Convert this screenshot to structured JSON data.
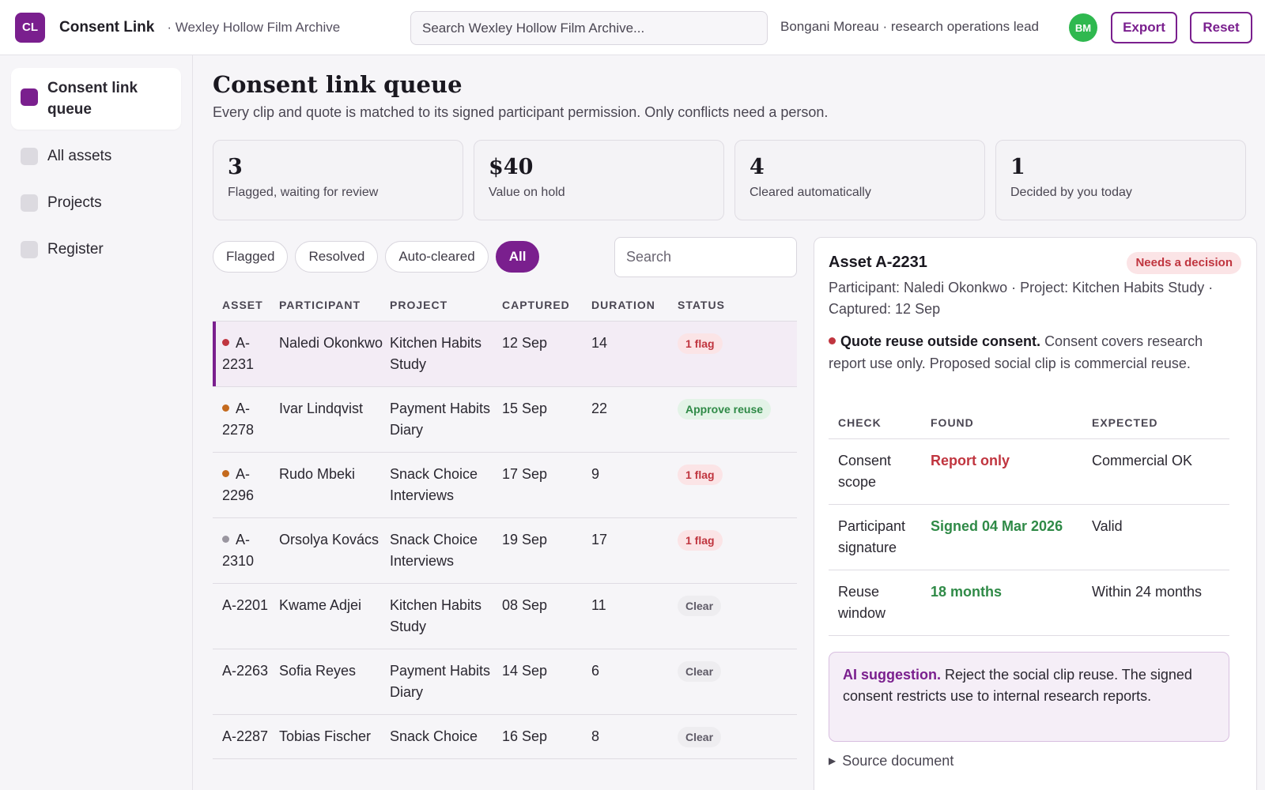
{
  "header": {
    "logo_text": "CL",
    "app_name": "Consent Link",
    "org": "· Wexley Hollow Film Archive",
    "search_placeholder": "Search Wexley Hollow Film Archive...",
    "user": "Bongani Moreau · research operations lead",
    "avatar": "BM",
    "export_label": "Export",
    "reset_label": "Reset"
  },
  "sidebar": {
    "items": [
      {
        "label": "Consent link queue",
        "active": true
      },
      {
        "label": "All assets",
        "active": false
      },
      {
        "label": "Projects",
        "active": false
      },
      {
        "label": "Register",
        "active": false
      }
    ]
  },
  "main": {
    "title": "Consent link queue",
    "subtitle": "Every clip and quote is matched to its signed participant permission. Only conflicts need a person.",
    "stats": [
      {
        "value": "3",
        "label": "Flagged, waiting for review"
      },
      {
        "value": "$40",
        "label": "Value on hold"
      },
      {
        "value": "4",
        "label": "Cleared automatically"
      },
      {
        "value": "1",
        "label": "Decided by you today"
      }
    ],
    "filters": [
      "Flagged",
      "Resolved",
      "Auto-cleared",
      "All"
    ],
    "active_filter": "All",
    "search_placeholder": "Search"
  },
  "table": {
    "columns": [
      "ASSET",
      "PARTICIPANT",
      "PROJECT",
      "CAPTURED",
      "DURATION",
      "STATUS"
    ],
    "rows": [
      {
        "asset": "A-2231",
        "participant": "Naledi Okonkwo",
        "project": "Kitchen Habits Study",
        "captured": "12 Sep",
        "duration": "14",
        "status": "1 flag",
        "status_type": "flag",
        "dot": "#c0353f",
        "selected": true
      },
      {
        "asset": "A-2278",
        "participant": "Ivar Lindqvist",
        "project": "Payment Habits Diary",
        "captured": "15 Sep",
        "duration": "22",
        "status": "Approve reuse",
        "status_type": "approve",
        "dot": "#c46a1e",
        "selected": false
      },
      {
        "asset": "A-2296",
        "participant": "Rudo Mbeki",
        "project": "Snack Choice Interviews",
        "captured": "17 Sep",
        "duration": "9",
        "status": "1 flag",
        "status_type": "flag",
        "dot": "#c46a1e",
        "selected": false
      },
      {
        "asset": "A-2310",
        "participant": "Orsolya Kovács",
        "project": "Snack Choice Interviews",
        "captured": "19 Sep",
        "duration": "17",
        "status": "1 flag",
        "status_type": "flag",
        "dot": "#9a96a0",
        "selected": false
      },
      {
        "asset": "A-2201",
        "participant": "Kwame Adjei",
        "project": "Kitchen Habits Study",
        "captured": "08 Sep",
        "duration": "11",
        "status": "Clear",
        "status_type": "clear",
        "dot": null,
        "selected": false
      },
      {
        "asset": "A-2263",
        "participant": "Sofia Reyes",
        "project": "Payment Habits Diary",
        "captured": "14 Sep",
        "duration": "6",
        "status": "Clear",
        "status_type": "clear",
        "dot": null,
        "selected": false
      },
      {
        "asset": "A-2287",
        "participant": "Tobias Fischer",
        "project": "Snack Choice",
        "captured": "16 Sep",
        "duration": "8",
        "status": "Clear",
        "status_type": "clear",
        "dot": null,
        "selected": false
      }
    ]
  },
  "detail": {
    "title": "Asset A-2231",
    "badge": "Needs a decision",
    "meta": "Participant: Naledi Okonkwo · Project: Kitchen Habits Study · Captured: 12 Sep",
    "issue_title": "Quote reuse outside consent.",
    "issue_text": "Consent covers research report use only. Proposed social clip is commercial reuse.",
    "check_columns": [
      "CHECK",
      "FOUND",
      "EXPECTED"
    ],
    "checks": [
      {
        "check": "Consent scope",
        "found": "Report only",
        "found_state": "bad",
        "expected": "Commercial OK"
      },
      {
        "check": "Participant signature",
        "found": "Signed 04 Mar 2026",
        "found_state": "good",
        "expected": "Valid"
      },
      {
        "check": "Reuse window",
        "found": "18 months",
        "found_state": "good",
        "expected": "Within 24 months"
      }
    ],
    "ai_label": "AI suggestion.",
    "ai_text": "Reject the social clip reuse. The signed consent restricts use to internal research reports.",
    "source_label": "Source document"
  },
  "colors": {
    "accent": "#7a1f8e",
    "flag_red": "#c0353f",
    "ok_green": "#2f8a47"
  }
}
